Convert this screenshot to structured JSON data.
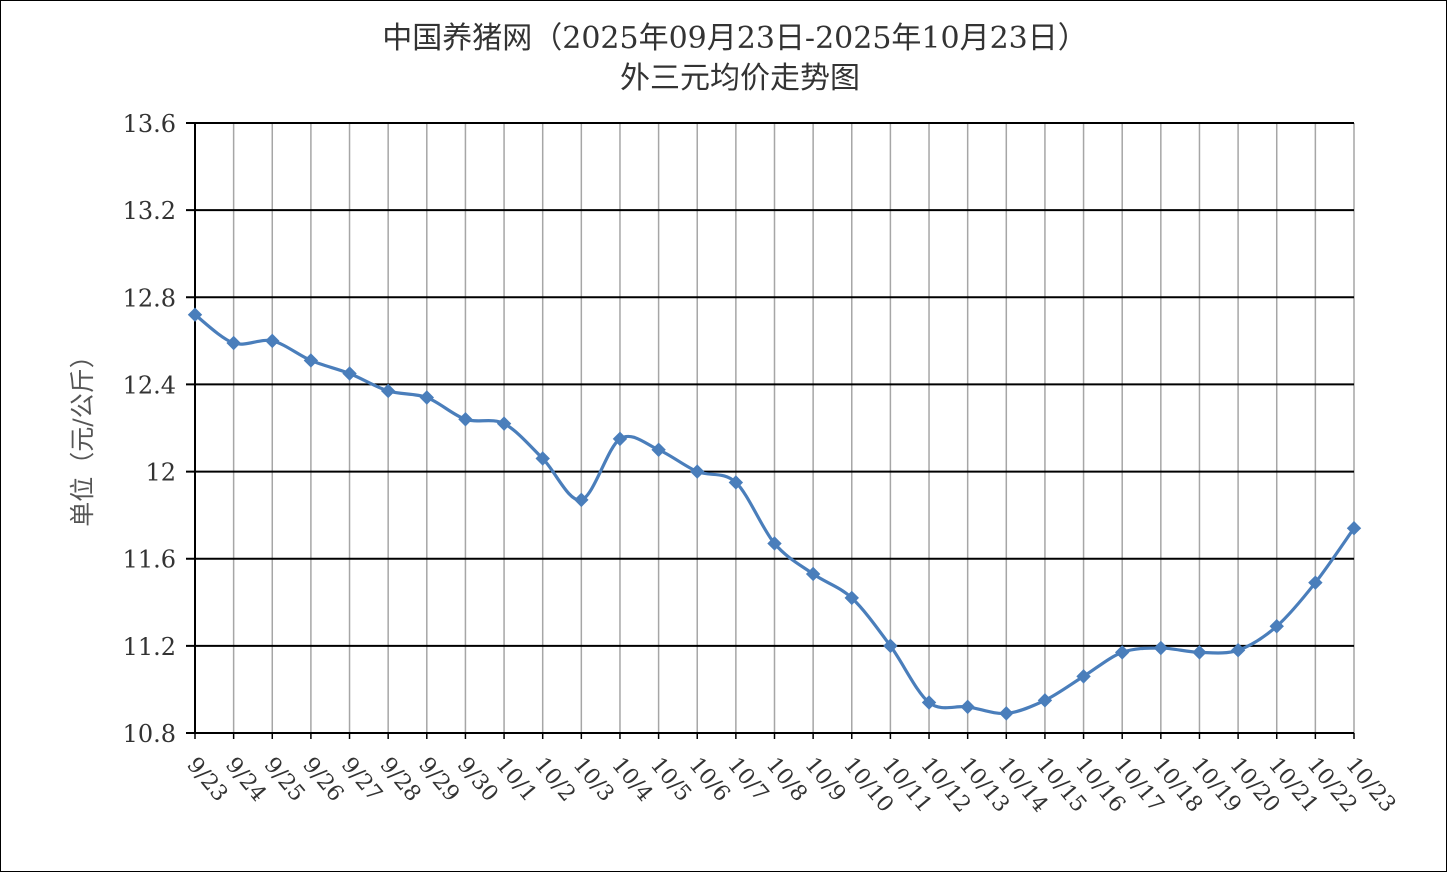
{
  "chart_data": {
    "type": "line",
    "title": "中国养猪网（2025年09月23日-2025年10月23日）",
    "subtitle": "外三元均价走势图",
    "ylabel": "单位（元/公斤）",
    "xlabel": "",
    "ylim": [
      10.8,
      13.6
    ],
    "yticks": [
      10.8,
      11.2,
      11.6,
      12,
      12.4,
      12.8,
      13.2,
      13.6
    ],
    "ytick_labels": [
      "10.8",
      "11.2",
      "11.6",
      "12",
      "12.4",
      "12.8",
      "13.2",
      "13.6"
    ],
    "grid": true,
    "legend": "none",
    "line_color": "#4a7ebb",
    "categories": [
      "9/23",
      "9/24",
      "9/25",
      "9/26",
      "9/27",
      "9/28",
      "9/29",
      "9/30",
      "10/1",
      "10/2",
      "10/3",
      "10/4",
      "10/5",
      "10/6",
      "10/7",
      "10/8",
      "10/9",
      "10/10",
      "10/11",
      "10/12",
      "10/13",
      "10/14",
      "10/15",
      "10/16",
      "10/17",
      "10/18",
      "10/19",
      "10/20",
      "10/21",
      "10/22",
      "10/23"
    ],
    "series": [
      {
        "values": [
          12.72,
          12.59,
          12.6,
          12.51,
          12.45,
          12.37,
          12.34,
          12.24,
          12.22,
          12.06,
          11.87,
          12.15,
          12.1,
          12.0,
          11.95,
          11.67,
          11.53,
          11.42,
          11.2,
          10.94,
          10.92,
          10.89,
          10.95,
          11.06,
          11.17,
          11.19,
          11.17,
          11.18,
          11.29,
          11.49,
          11.74
        ]
      }
    ]
  }
}
